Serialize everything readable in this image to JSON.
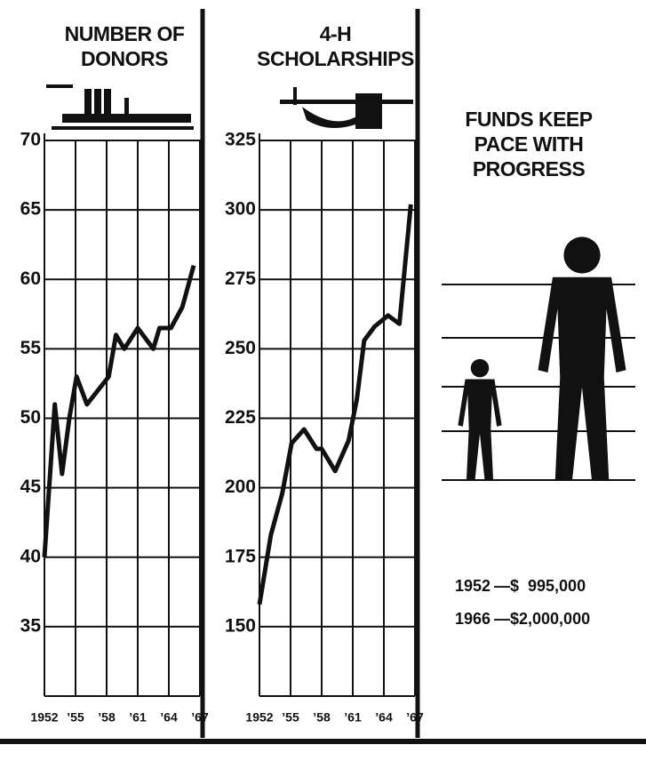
{
  "chart_data": [
    {
      "type": "line",
      "title": "NUMBER OF DONORS",
      "color": "#111",
      "x": [
        1952,
        1953,
        1953.7,
        1954.4,
        1955.1,
        1956.1,
        1958.2,
        1958.9,
        1959.7,
        1961,
        1962.5,
        1963.1,
        1964.2,
        1965.3,
        1966.4
      ],
      "values": [
        40,
        51,
        46,
        50,
        53,
        51,
        53,
        56,
        55,
        56.5,
        55,
        56.5,
        56.5,
        58,
        61
      ],
      "xlim": [
        1952,
        1967
      ],
      "xticks": [
        1952,
        {
          "value": 1955,
          "label": "’55"
        },
        {
          "value": 1958,
          "label": "’58"
        },
        {
          "value": 1961,
          "label": "’61"
        },
        {
          "value": 1964,
          "label": "’64"
        },
        {
          "value": 1967,
          "label": "’67"
        }
      ],
      "ylim": [
        30,
        70
      ],
      "yticks": [
        35,
        40,
        45,
        50,
        55,
        60,
        65,
        70
      ],
      "grid": true
    },
    {
      "type": "line",
      "title": "4-H SCHOLARSHIPS",
      "color": "#111",
      "x": [
        1952,
        1953.1,
        1954.2,
        1955.1,
        1956.3,
        1957.5,
        1958,
        1959.3,
        1960.6,
        1961.4,
        1962.1,
        1963.1,
        1964.4,
        1965.5,
        1966.6
      ],
      "values": [
        158,
        183,
        198,
        216,
        221,
        214,
        214,
        206,
        217,
        232,
        253,
        258,
        262,
        259,
        302
      ],
      "xlim": [
        1952,
        1967
      ],
      "xticks": [
        1952,
        {
          "value": 1955,
          "label": "’55"
        },
        {
          "value": 1958,
          "label": "’58"
        },
        {
          "value": 1961,
          "label": "’61"
        },
        {
          "value": 1964,
          "label": "’64"
        },
        {
          "value": 1967,
          "label": "’67"
        }
      ],
      "ylim": [
        125,
        325
      ],
      "yticks": [
        150,
        175,
        200,
        225,
        250,
        275,
        300,
        325
      ],
      "grid": true
    },
    {
      "type": "pictograph",
      "title": "FUNDS KEEP PACE WITH PROGRESS",
      "color": "#111",
      "categories": [
        "1952",
        "1966"
      ],
      "values": [
        995000,
        2000000
      ],
      "value_labels": [
        "—$  995,000",
        "—$2,000,000"
      ]
    }
  ]
}
